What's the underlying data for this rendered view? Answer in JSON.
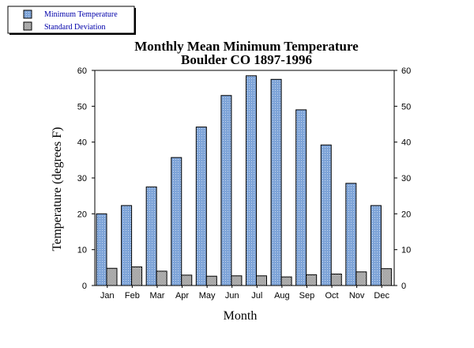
{
  "chart_data": {
    "type": "bar",
    "title": "Monthly Mean Minimum Temperature",
    "subtitle": "Boulder CO 1897-1996",
    "xlabel": "Month",
    "ylabel": "Temperature (degrees F)",
    "ylim": [
      0,
      60
    ],
    "yticks": [
      0,
      10,
      20,
      30,
      40,
      50,
      60
    ],
    "right_axis_ticks": true,
    "grid": false,
    "legend_position": "top-left",
    "categories": [
      "Jan",
      "Feb",
      "Mar",
      "Apr",
      "May",
      "Jun",
      "Jul",
      "Aug",
      "Sep",
      "Oct",
      "Nov",
      "Dec"
    ],
    "series": [
      {
        "name": "Minimum Temperature",
        "values": [
          20,
          22.3,
          27.5,
          35.7,
          44.2,
          53,
          58.5,
          57.5,
          49,
          39.2,
          28.5,
          22.3
        ],
        "color": "#7ea4d8",
        "pattern": "dots"
      },
      {
        "name": "Standard Deviation",
        "values": [
          4.8,
          5.2,
          4.0,
          2.9,
          2.6,
          2.7,
          2.7,
          2.4,
          3.0,
          3.2,
          3.8,
          4.7
        ],
        "color": "#d8d8d8",
        "pattern": "checker"
      }
    ],
    "colors": {
      "axis": "#000000",
      "label_text": "#000000",
      "legend_text": "#0000aa"
    }
  }
}
